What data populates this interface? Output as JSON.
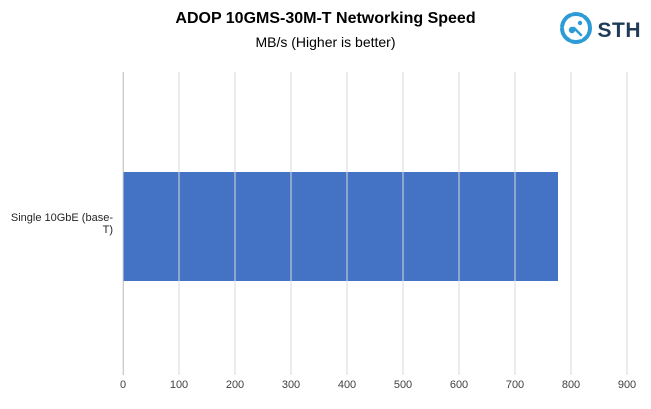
{
  "header": {
    "title": "ADOP 10GMS-30M-T Networking Speed",
    "subtitle": "MB/s (Higher is better)",
    "logo_text": "STH"
  },
  "chart_data": {
    "type": "bar",
    "orientation": "horizontal",
    "title": "ADOP 10GMS-30M-T Networking Speed",
    "subtitle": "MB/s (Higher is better)",
    "categories": [
      "Single 10GbE (base-T)"
    ],
    "values": [
      776
    ],
    "xlabel": "",
    "ylabel": "",
    "xlim": [
      0,
      900
    ],
    "xticks": [
      0,
      100,
      200,
      300,
      400,
      500,
      600,
      700,
      800,
      900
    ],
    "grid": true,
    "legend": false,
    "bar_color": "#4472c4",
    "gridline_color": "#d9d9d9"
  },
  "colors": {
    "bar": "#4472c4",
    "logo_ring": "#2e9bd6",
    "logo_text": "#1f3b57",
    "gridline": "#d9d9d9",
    "tick_text": "#404040"
  }
}
